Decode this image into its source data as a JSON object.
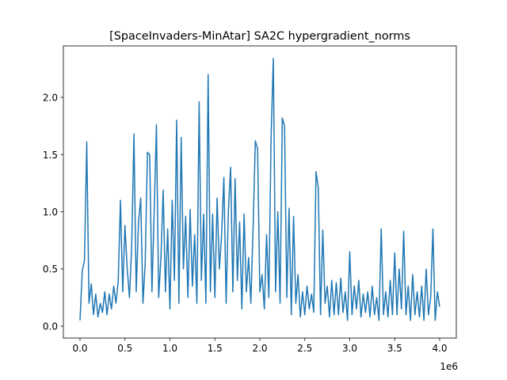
{
  "chart_data": {
    "type": "line",
    "title": "[SpaceInvaders-MinAtar] SA2C hypergradient_norms",
    "x_offset_label": "1e6",
    "x": [
      0,
      25000,
      50000,
      75000,
      100000,
      125000,
      150000,
      175000,
      200000,
      225000,
      250000,
      275000,
      300000,
      325000,
      350000,
      375000,
      400000,
      425000,
      450000,
      475000,
      500000,
      525000,
      550000,
      575000,
      600000,
      625000,
      650000,
      675000,
      700000,
      725000,
      750000,
      775000,
      800000,
      825000,
      850000,
      875000,
      900000,
      925000,
      950000,
      975000,
      1000000,
      1025000,
      1050000,
      1075000,
      1100000,
      1125000,
      1150000,
      1175000,
      1200000,
      1225000,
      1250000,
      1275000,
      1300000,
      1325000,
      1350000,
      1375000,
      1400000,
      1425000,
      1450000,
      1475000,
      1500000,
      1525000,
      1550000,
      1575000,
      1600000,
      1625000,
      1650000,
      1675000,
      1700000,
      1725000,
      1750000,
      1775000,
      1800000,
      1825000,
      1850000,
      1875000,
      1900000,
      1925000,
      1950000,
      1975000,
      2000000,
      2025000,
      2050000,
      2075000,
      2100000,
      2125000,
      2150000,
      2175000,
      2200000,
      2225000,
      2250000,
      2275000,
      2300000,
      2325000,
      2350000,
      2375000,
      2400000,
      2425000,
      2450000,
      2475000,
      2500000,
      2525000,
      2550000,
      2575000,
      2600000,
      2625000,
      2650000,
      2675000,
      2700000,
      2725000,
      2750000,
      2775000,
      2800000,
      2825000,
      2850000,
      2875000,
      2900000,
      2925000,
      2950000,
      2975000,
      3000000,
      3025000,
      3050000,
      3075000,
      3100000,
      3125000,
      3150000,
      3175000,
      3200000,
      3225000,
      3250000,
      3275000,
      3300000,
      3325000,
      3350000,
      3375000,
      3400000,
      3425000,
      3450000,
      3475000,
      3500000,
      3525000,
      3550000,
      3575000,
      3600000,
      3625000,
      3650000,
      3675000,
      3700000,
      3725000,
      3750000,
      3775000,
      3800000,
      3825000,
      3850000,
      3875000,
      3900000,
      3925000,
      3950000,
      3975000,
      4000000
    ],
    "values": [
      0.05,
      0.48,
      0.58,
      1.61,
      0.2,
      0.37,
      0.1,
      0.28,
      0.08,
      0.2,
      0.12,
      0.3,
      0.1,
      0.28,
      0.15,
      0.35,
      0.2,
      0.4,
      1.1,
      0.3,
      0.88,
      0.5,
      0.25,
      0.7,
      1.68,
      0.3,
      0.9,
      1.12,
      0.2,
      0.55,
      1.52,
      1.5,
      0.3,
      1.0,
      1.76,
      0.25,
      0.6,
      1.19,
      0.3,
      0.85,
      0.15,
      1.1,
      0.4,
      1.8,
      0.2,
      1.65,
      0.5,
      0.96,
      0.25,
      1.02,
      0.35,
      0.8,
      0.2,
      1.96,
      0.4,
      0.98,
      0.2,
      2.2,
      0.3,
      0.98,
      0.25,
      1.12,
      0.5,
      0.8,
      1.3,
      0.2,
      1.0,
      1.39,
      0.3,
      1.29,
      0.4,
      0.91,
      0.15,
      0.98,
      0.3,
      0.6,
      0.2,
      0.86,
      1.62,
      1.55,
      0.3,
      0.45,
      0.15,
      0.8,
      0.25,
      1.65,
      2.34,
      0.3,
      1.0,
      0.2,
      1.82,
      1.75,
      0.25,
      1.03,
      0.1,
      0.96,
      0.2,
      0.45,
      0.08,
      0.3,
      0.1,
      0.35,
      0.15,
      0.28,
      0.12,
      1.35,
      1.21,
      0.1,
      0.84,
      0.2,
      0.35,
      0.08,
      0.4,
      0.1,
      0.38,
      0.1,
      0.42,
      0.12,
      0.3,
      0.05,
      0.65,
      0.1,
      0.35,
      0.15,
      0.4,
      0.08,
      0.28,
      0.12,
      0.3,
      0.08,
      0.35,
      0.1,
      0.25,
      0.05,
      0.85,
      0.1,
      0.3,
      0.08,
      0.4,
      0.1,
      0.64,
      0.1,
      0.5,
      0.15,
      0.83,
      0.1,
      0.35,
      0.05,
      0.45,
      0.1,
      0.3,
      0.08,
      0.35,
      0.05,
      0.5,
      0.1,
      0.25,
      0.85,
      0.05,
      0.3,
      0.17
    ],
    "color": "#1f77b4",
    "xlim": [
      -185000,
      4185000
    ],
    "xticks": [
      {
        "value": 0,
        "label": "0.0"
      },
      {
        "value": 500000,
        "label": "0.5"
      },
      {
        "value": 1000000,
        "label": "1.0"
      },
      {
        "value": 1500000,
        "label": "1.5"
      },
      {
        "value": 2000000,
        "label": "2.0"
      },
      {
        "value": 2500000,
        "label": "2.5"
      },
      {
        "value": 3000000,
        "label": "3.0"
      },
      {
        "value": 3500000,
        "label": "3.5"
      },
      {
        "value": 4000000,
        "label": "4.0"
      }
    ],
    "ylim": [
      -0.104,
      2.45
    ],
    "yticks": [
      {
        "value": 0,
        "label": "0.0"
      },
      0.5,
      {
        "value": 1,
        "label": "1.0"
      },
      1.5,
      {
        "value": 2,
        "label": "2.0"
      }
    ]
  }
}
